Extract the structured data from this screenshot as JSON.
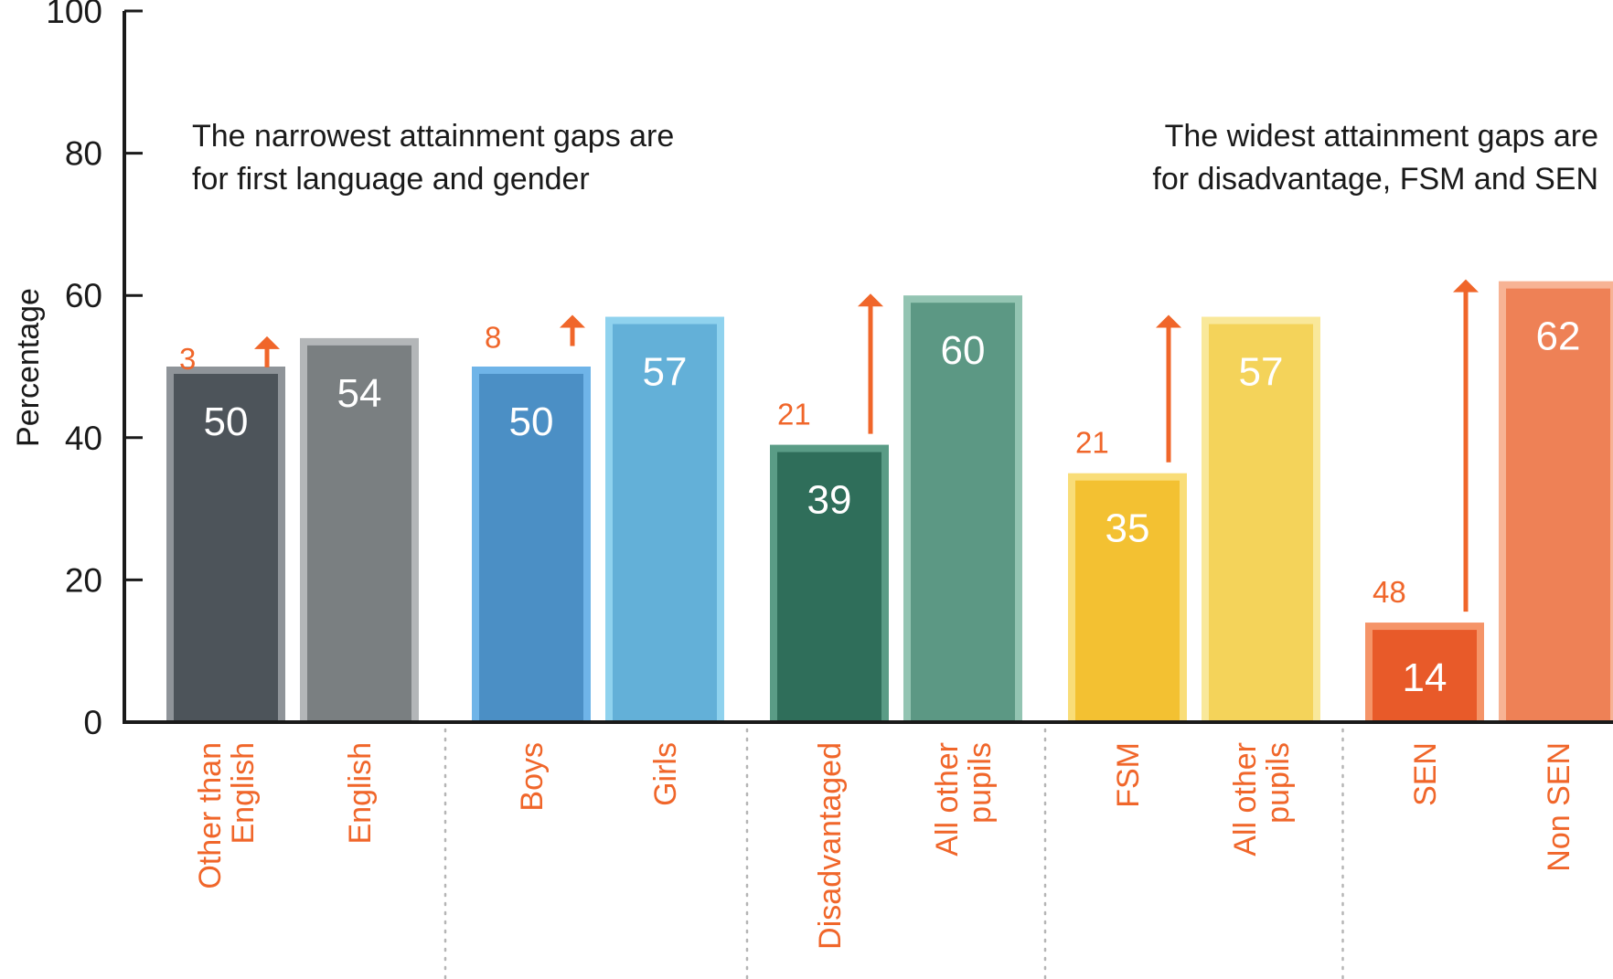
{
  "chart_data": {
    "type": "bar",
    "ylabel": "Percentage",
    "ylim": [
      0,
      100
    ],
    "yticks": [
      0,
      20,
      40,
      60,
      80,
      100
    ],
    "grid": false,
    "annotations": [
      {
        "lines": [
          "The narrowest attainment gaps are",
          "for first language and gender"
        ],
        "align": "left"
      },
      {
        "lines": [
          "The widest attainment gaps are",
          "for disadvantage, FSM and SEN"
        ],
        "align": "right"
      }
    ],
    "groups": [
      {
        "gap": 3,
        "bars": [
          {
            "label": [
              "Other than",
              "English"
            ],
            "value": 50,
            "color": "#4d545a",
            "border": "#8f9499"
          },
          {
            "label": [
              "English"
            ],
            "value": 54,
            "color": "#7a7f81",
            "border": "#b3b6b8"
          }
        ]
      },
      {
        "gap": 8,
        "bars": [
          {
            "label": [
              "Boys"
            ],
            "value": 50,
            "color": "#4b8fc5",
            "border": "#6fb4e8"
          },
          {
            "label": [
              "Girls"
            ],
            "value": 57,
            "color": "#63b0d8",
            "border": "#8fd2ee"
          }
        ]
      },
      {
        "gap": 21,
        "bars": [
          {
            "label": [
              "Disadvantaged"
            ],
            "value": 39,
            "color": "#2f6e5a",
            "border": "#5a9c86"
          },
          {
            "label": [
              "All other",
              "pupils"
            ],
            "value": 60,
            "color": "#5c9884",
            "border": "#93c4b2"
          }
        ]
      },
      {
        "gap": 21,
        "bars": [
          {
            "label": [
              "FSM"
            ],
            "value": 35,
            "color": "#f3c132",
            "border": "#f9dd78"
          },
          {
            "label": [
              "All other",
              "pupils"
            ],
            "value": 57,
            "color": "#f4d35a",
            "border": "#f9e89a"
          }
        ]
      },
      {
        "gap": 48,
        "bars": [
          {
            "label": [
              "SEN"
            ],
            "value": 14,
            "color": "#e85a29",
            "border": "#f59468"
          },
          {
            "label": [
              "Non SEN"
            ],
            "value": 62,
            "color": "#ee8156",
            "border": "#f7b394"
          }
        ]
      }
    ]
  },
  "colors": {
    "accent": "#f0662a",
    "axis": "#1a1a1a",
    "separator": "#b5b5b5"
  }
}
